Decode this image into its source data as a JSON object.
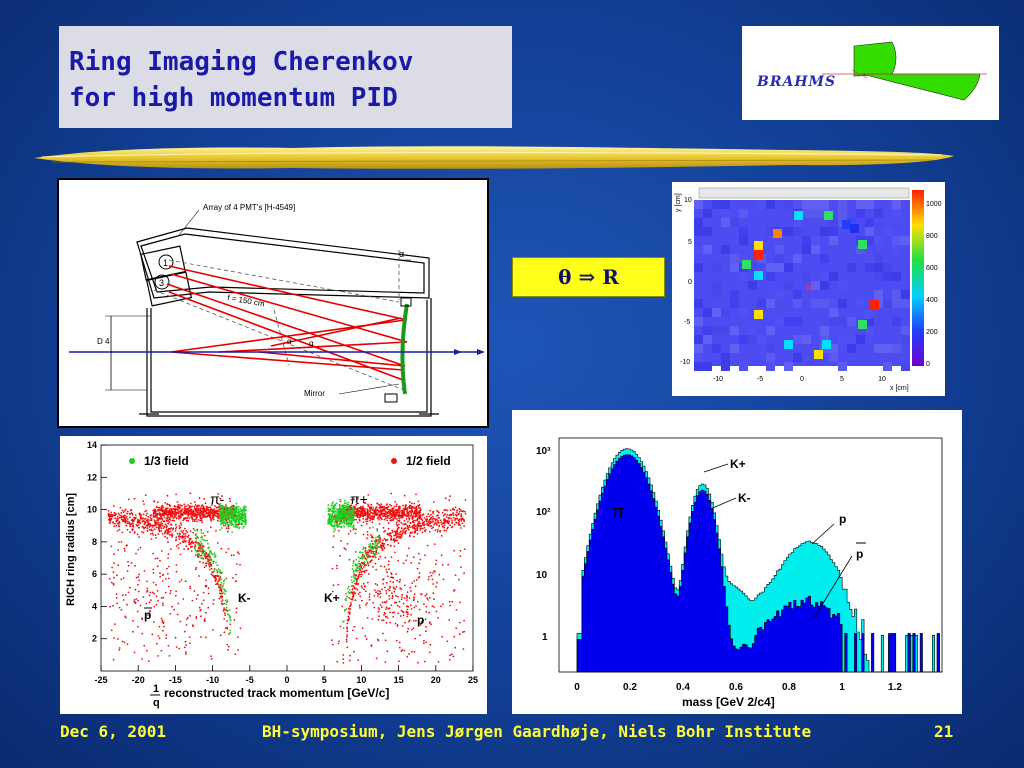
{
  "title": {
    "line1": "Ring Imaging Cherenkov",
    "line2": "for high momentum PID"
  },
  "logo": {
    "text": "BRAHMS"
  },
  "formula": {
    "text": "θ  ⇒ R"
  },
  "diagram": {
    "pmt_label": "Array of 4 PMT's [H-4549]",
    "focal_label": "f = 150 cm",
    "d_label": "D 4",
    "mirror_label": "Mirror",
    "pmt_numbers": [
      "1",
      "3"
    ],
    "alpha": "α",
    "beam_color": "#1a1aa8",
    "ray_color": "#e60000"
  },
  "ring_plot": {
    "ylabel": "y [cm]",
    "xlabel": "x [cm]",
    "x_ticks": [
      "-10",
      "-5",
      "0",
      "5",
      "10"
    ],
    "y_ticks": [
      "10",
      "5",
      "0",
      "-5",
      "-10"
    ],
    "colorbar_ticks": [
      "1000",
      "800",
      "600",
      "400",
      "200",
      "0"
    ],
    "center_marker": "×"
  },
  "scatter_plot": {
    "ylabel": "RICH ring radius [cm]",
    "xlabel": "reconstructed track momentum [GeV/c]",
    "xlabel_prefix_num": "1",
    "xlabel_prefix_den": "q",
    "legend": [
      {
        "label": "1/3 field",
        "color": "#22cc22"
      },
      {
        "label": "1/2 field",
        "color": "#ee1111"
      }
    ],
    "x_ticks": [
      "-25",
      "-20",
      "-15",
      "-10",
      "-5",
      "0",
      "5",
      "10",
      "15",
      "20",
      "25"
    ],
    "y_ticks": [
      "14",
      "12",
      "10",
      "8",
      "6",
      "4",
      "2"
    ],
    "labels": {
      "pi_minus": "π-",
      "pi_plus": "π+",
      "k_minus": "K-",
      "k_plus": "K+",
      "pbar": "p",
      "p": "p"
    }
  },
  "mass_plot": {
    "xlabel": "mass [GeV 2/c4]",
    "x_ticks": [
      "0",
      "0.2",
      "0.4",
      "0.6",
      "0.8",
      "1",
      "1.2"
    ],
    "y_ticks": [
      "10³",
      "10²",
      "10",
      "1"
    ],
    "labels": {
      "pi": "π",
      "k_plus": "K+",
      "k_minus": "K-",
      "p": "p",
      "pbar": "p"
    },
    "fill_dark": "#0000ee",
    "fill_light": "#00eeee"
  },
  "footer": {
    "date": "Dec 6, 2001",
    "center": "BH-symposium,  Jens Jørgen Gaardhøje, Niels Bohr Institute",
    "page": "21"
  }
}
